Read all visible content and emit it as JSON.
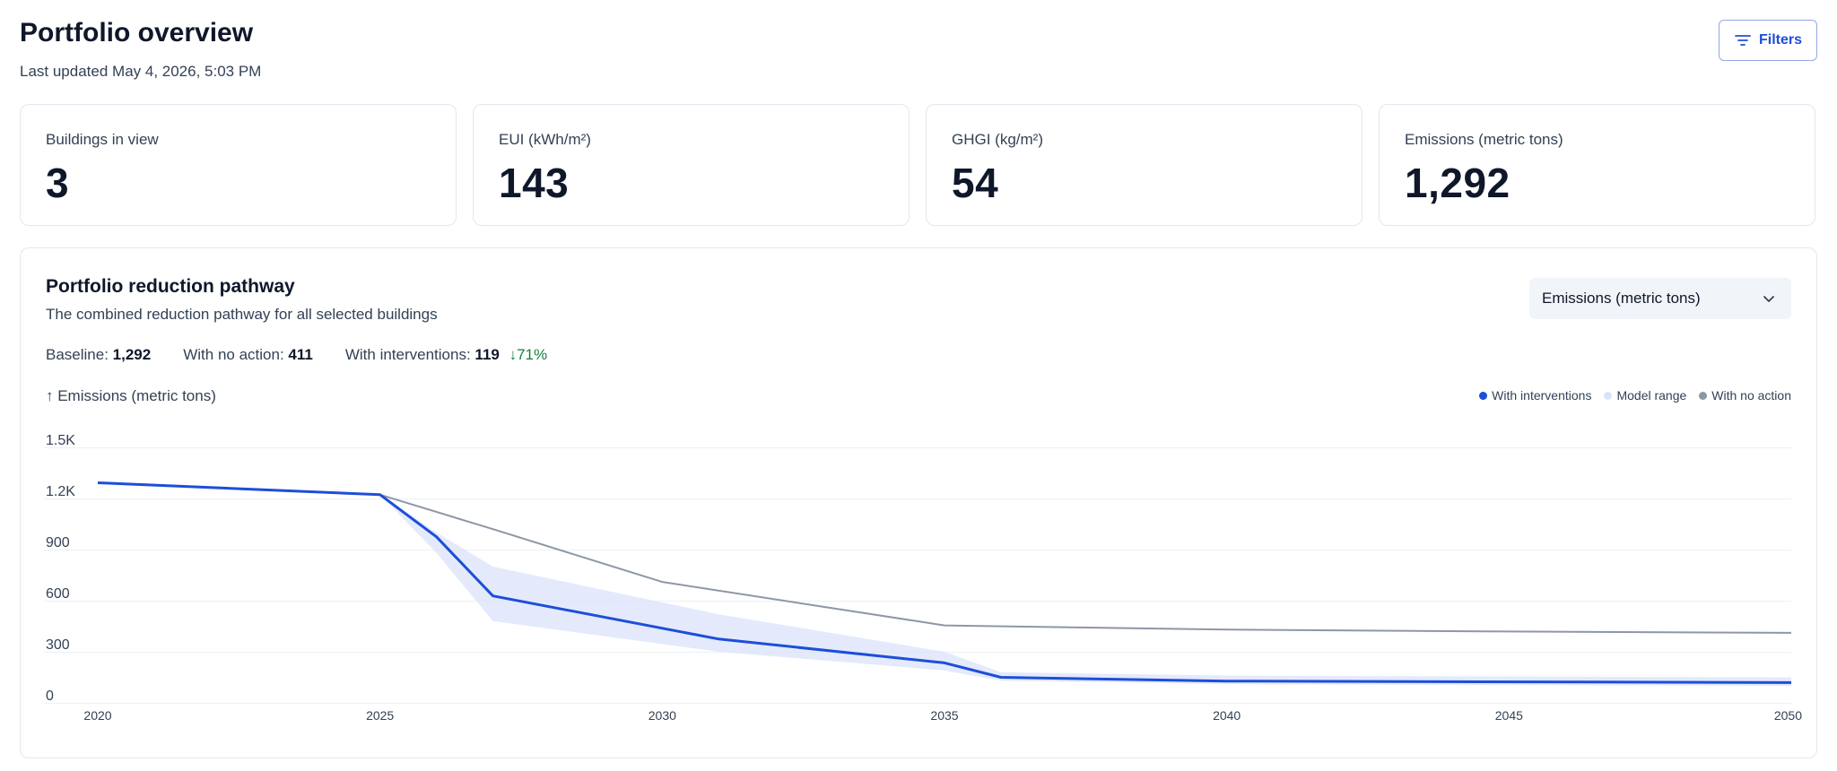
{
  "header": {
    "title": "Portfolio overview",
    "last_updated": "Last updated May 4, 2026, 5:03 PM",
    "filters_label": "Filters"
  },
  "stats": [
    {
      "label": "Buildings in view",
      "value": "3"
    },
    {
      "label": "EUI (kWh/m²)",
      "value": "143"
    },
    {
      "label": "GHGI (kg/m²)",
      "value": "54"
    },
    {
      "label": "Emissions (metric tons)",
      "value": "1,292"
    }
  ],
  "pathway": {
    "title": "Portfolio reduction pathway",
    "subtitle": "The combined reduction pathway for all selected buildings",
    "metric_select": "Emissions (metric tons)",
    "baseline_label": "Baseline:",
    "baseline_value": "1,292",
    "no_action_label": "With no action:",
    "no_action_value": "411",
    "interventions_label": "With interventions:",
    "interventions_value": "119",
    "reduction_arrow": "↓",
    "reduction_value": "71%",
    "y_axis_title": "↑ Emissions (metric tons)"
  },
  "colors": {
    "interventions": "#1d4ed8",
    "model_range": "#dbe3fb",
    "no_action": "#8e97a6",
    "reduction_green": "#15803d",
    "grid": "#eef0f3"
  },
  "chart_data": {
    "type": "line",
    "ylabel": "Emissions (metric tons)",
    "ylim": [
      0,
      1500
    ],
    "xlim": [
      2020,
      2050
    ],
    "y_ticks": [
      0,
      300,
      600,
      900,
      1200,
      1500
    ],
    "y_tick_labels": [
      "0",
      "300",
      "600",
      "900",
      "1.2K",
      "1.5K"
    ],
    "x_ticks": [
      2020,
      2025,
      2030,
      2035,
      2040,
      2045,
      2050
    ],
    "grid": true,
    "legend_position": "top-right",
    "series": [
      {
        "name": "With interventions",
        "points": [
          [
            2020,
            1292
          ],
          [
            2025,
            1222
          ],
          [
            2026,
            975
          ],
          [
            2027,
            628
          ],
          [
            2031,
            375
          ],
          [
            2035,
            235
          ],
          [
            2036,
            150
          ],
          [
            2040,
            128
          ],
          [
            2050,
            119
          ]
        ]
      },
      {
        "name": "With no action",
        "points": [
          [
            2020,
            1292
          ],
          [
            2025,
            1222
          ],
          [
            2027,
            1020
          ],
          [
            2030,
            710
          ],
          [
            2035,
            455
          ],
          [
            2040,
            430
          ],
          [
            2045,
            419
          ],
          [
            2050,
            411
          ]
        ]
      }
    ],
    "range": {
      "name": "Model range",
      "upper": [
        [
          2025,
          1222
        ],
        [
          2026,
          1000
        ],
        [
          2027,
          800
        ],
        [
          2031,
          520
        ],
        [
          2035,
          300
        ],
        [
          2036,
          180
        ],
        [
          2040,
          160
        ],
        [
          2050,
          150
        ]
      ],
      "lower": [
        [
          2025,
          1222
        ],
        [
          2026,
          880
        ],
        [
          2027,
          480
        ],
        [
          2031,
          300
        ],
        [
          2035,
          190
        ],
        [
          2036,
          130
        ],
        [
          2040,
          110
        ],
        [
          2050,
          100
        ]
      ]
    }
  }
}
